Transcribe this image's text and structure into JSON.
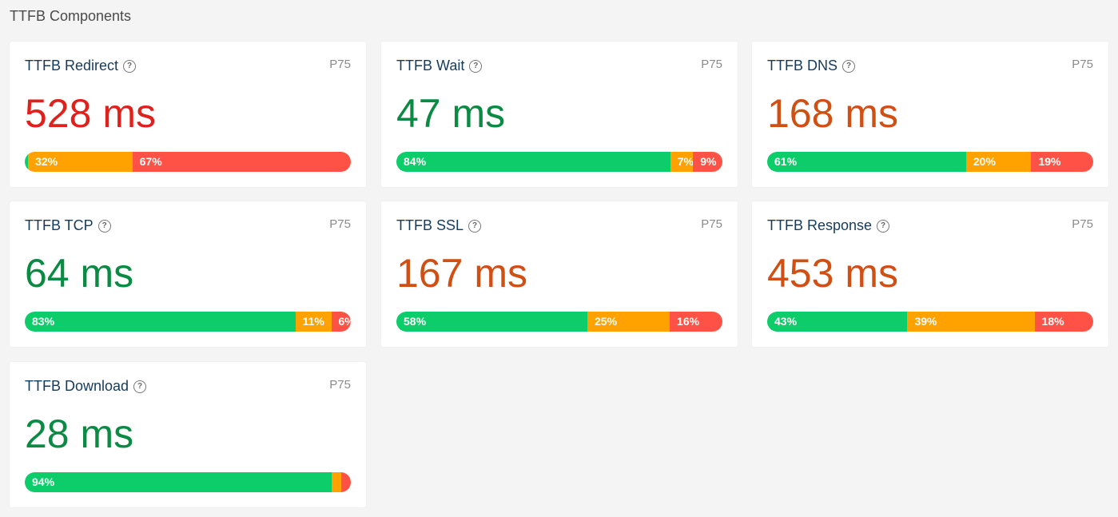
{
  "section_title": "TTFB Components",
  "colors": {
    "good": "#0ccd69",
    "needs_improvement": "#ffa200",
    "poor": "#ff5247",
    "value_good": "#0a8a43",
    "value_ni": "#d24f14",
    "value_poor": "#e0201a"
  },
  "cards": [
    {
      "title": "TTFB Redirect",
      "percentile": "P75",
      "value": "528 ms",
      "status": "poor",
      "dist": [
        1,
        32,
        67
      ],
      "labels": [
        "",
        "32%",
        "67%"
      ]
    },
    {
      "title": "TTFB Wait",
      "percentile": "P75",
      "value": "47 ms",
      "status": "good",
      "dist": [
        84,
        7,
        9
      ],
      "labels": [
        "84%",
        "7%",
        "9%"
      ]
    },
    {
      "title": "TTFB DNS",
      "percentile": "P75",
      "value": "168 ms",
      "status": "ni",
      "dist": [
        61,
        20,
        19
      ],
      "labels": [
        "61%",
        "20%",
        "19%"
      ]
    },
    {
      "title": "TTFB TCP",
      "percentile": "P75",
      "value": "64 ms",
      "status": "good",
      "dist": [
        83,
        11,
        6
      ],
      "labels": [
        "83%",
        "11%",
        "6%"
      ]
    },
    {
      "title": "TTFB SSL",
      "percentile": "P75",
      "value": "167 ms",
      "status": "ni",
      "dist": [
        58,
        25,
        16
      ],
      "labels": [
        "58%",
        "25%",
        "16%"
      ]
    },
    {
      "title": "TTFB Response",
      "percentile": "P75",
      "value": "453 ms",
      "status": "ni",
      "dist": [
        43,
        39,
        18
      ],
      "labels": [
        "43%",
        "39%",
        "18%"
      ]
    },
    {
      "title": "TTFB Download",
      "percentile": "P75",
      "value": "28 ms",
      "status": "good",
      "dist": [
        94,
        3,
        3
      ],
      "labels": [
        "94%",
        "",
        ""
      ]
    }
  ]
}
